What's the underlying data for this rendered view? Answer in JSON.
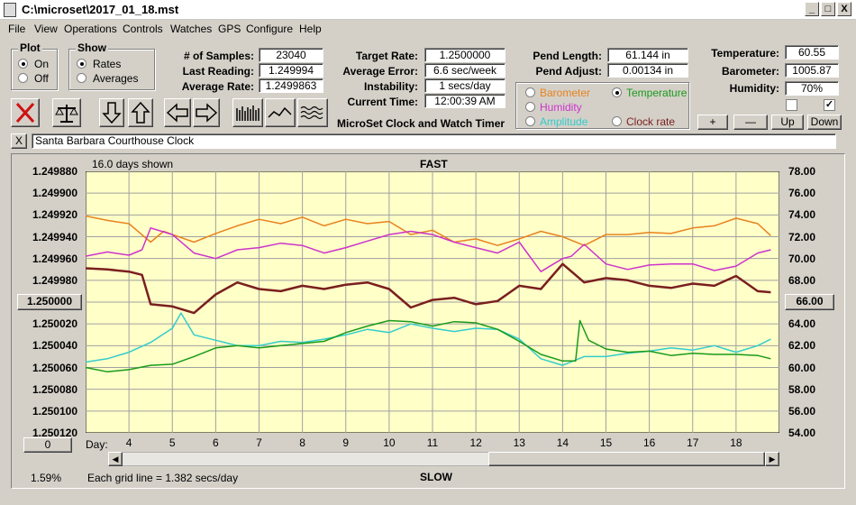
{
  "window": {
    "title": "C:\\microset\\2017_01_18.mst",
    "min": "_",
    "max": "□",
    "close": "X"
  },
  "menu": [
    "File",
    "View",
    "Operations",
    "Controls",
    "Watches",
    "GPS",
    "Configure",
    "Help"
  ],
  "plot_group": {
    "title": "Plot",
    "options": [
      "On",
      "Off"
    ],
    "selected": "On"
  },
  "show_group": {
    "title": "Show",
    "options": [
      "Rates",
      "Averages"
    ],
    "selected": "Rates"
  },
  "stats": {
    "samples_label": "# of Samples:",
    "samples": "23040",
    "last_label": "Last Reading:",
    "last": "1.249994",
    "avg_label": "Average Rate:",
    "avg": "1.2499863"
  },
  "timing": {
    "target_label": "Target Rate:",
    "target": "1.2500000",
    "error_label": "Average Error:",
    "error": "6.6 sec/week",
    "instab_label": "Instability:",
    "instab": "1 secs/day",
    "time_label": "Current Time:",
    "time": "12:00:39 AM"
  },
  "app_name": "MicroSet Clock and Watch Timer",
  "pendulum": {
    "length_label": "Pend Length:",
    "length": "61.144 in",
    "adjust_label": "Pend Adjust:",
    "adjust": "0.00134 in"
  },
  "sensor_options": [
    {
      "label": "Barometer",
      "color": "#e8821e",
      "selected": false
    },
    {
      "label": "Temperature",
      "color": "#1a9a1a",
      "selected": true
    },
    {
      "label": "Humidity",
      "color": "#cc33cc",
      "selected": false
    },
    {
      "label": "Clock rate",
      "color": "#7a1f1f",
      "selected": false
    },
    {
      "label": "Amplitude",
      "color": "#33cccc",
      "selected": false
    }
  ],
  "environment": {
    "temp_label": "Temperature:",
    "temp": "60.55",
    "baro_label": "Barometer:",
    "baro": "1005.87",
    "hum_label": "Humidity:",
    "hum": "70%"
  },
  "checkboxes": [
    false,
    true
  ],
  "adjust_buttons": [
    "+",
    "—",
    "Up",
    "Down"
  ],
  "clock_name": "Santa Barbara Courthouse Clock",
  "clear_button": "X",
  "chart": {
    "days_shown": "16.0 days shown",
    "top_label": "FAST",
    "bottom_label": "SLOW",
    "rate_button": "1.250000",
    "temp_button": "66.00",
    "zero_button": "0",
    "percent": "1.59%",
    "grid_note": "Each grid line = 1.382 secs/day",
    "day_label": "Day:",
    "scroll_left": "◀",
    "scroll_right": "▶"
  },
  "chart_data": {
    "type": "line",
    "x_label": "Day:",
    "x_ticks": [
      4,
      5,
      6,
      7,
      8,
      9,
      10,
      11,
      12,
      13,
      14,
      15,
      16,
      17,
      18
    ],
    "xlim": [
      3,
      19
    ],
    "y_left_ticks": [
      "1.249880",
      "1.249900",
      "1.249920",
      "1.249940",
      "1.249960",
      "1.249980",
      "1.250000",
      "1.250020",
      "1.250040",
      "1.250060",
      "1.250080",
      "1.250100",
      "1.250120"
    ],
    "y_left_range": [
      1.24988,
      1.25012
    ],
    "y_left_inverted": true,
    "y_right_ticks": [
      "78.00",
      "76.00",
      "74.00",
      "72.00",
      "70.00",
      "68.00",
      "66.00",
      "64.00",
      "62.00",
      "60.00",
      "58.00",
      "56.00",
      "54.00"
    ],
    "y_right_range": [
      54,
      78
    ],
    "grid": true,
    "background": "#ffffc8",
    "series": [
      {
        "name": "Barometer",
        "axis": "right",
        "color": "#e8821e",
        "x": [
          3,
          3.5,
          4,
          4.5,
          4.8,
          5,
          5.5,
          6,
          6.5,
          7,
          7.5,
          8,
          8.5,
          9,
          9.5,
          10,
          10.5,
          11,
          11.5,
          12,
          12.5,
          13,
          13.5,
          14,
          14.5,
          15,
          15.5,
          16,
          16.5,
          17,
          17.5,
          18,
          18.5,
          18.8
        ],
        "y": [
          73.9,
          73.5,
          73.2,
          71.5,
          72.5,
          72.2,
          71.5,
          72.3,
          73,
          73.6,
          73.2,
          73.8,
          73,
          73.6,
          73.2,
          73.4,
          72.2,
          72.6,
          71.5,
          71.8,
          71.2,
          71.8,
          72.5,
          72,
          71.2,
          72.2,
          72.2,
          72.4,
          72.3,
          72.8,
          73,
          73.7,
          73.2,
          72.1
        ]
      },
      {
        "name": "Humidity",
        "axis": "right",
        "color": "#cc33cc",
        "x": [
          3,
          3.5,
          4,
          4.3,
          4.5,
          5,
          5.5,
          6,
          6.5,
          7,
          7.5,
          8,
          8.5,
          9,
          9.5,
          10,
          10.5,
          11,
          11.5,
          12,
          12.5,
          13,
          13.5,
          14,
          14.2,
          14.5,
          15,
          15.5,
          16,
          16.5,
          17,
          17.5,
          18,
          18.5,
          18.8
        ],
        "y": [
          70.2,
          70.6,
          70.3,
          70.8,
          72.8,
          72.2,
          70.5,
          70,
          70.8,
          71,
          71.4,
          71.2,
          70.5,
          71,
          71.6,
          72.2,
          72.5,
          72.2,
          71.5,
          71,
          70.5,
          71.5,
          68.8,
          70,
          70.2,
          71.3,
          69.5,
          69,
          69.4,
          69.5,
          69.5,
          68.9,
          69.3,
          70.5,
          70.8
        ]
      },
      {
        "name": "Clock rate",
        "axis": "left",
        "color": "#7a1f1f",
        "x": [
          3,
          3.5,
          4,
          4.3,
          4.5,
          5,
          5.5,
          6,
          6.5,
          7,
          7.5,
          8,
          8.5,
          9,
          9.5,
          10,
          10.5,
          11,
          11.5,
          12,
          12.5,
          13,
          13.5,
          14,
          14.5,
          15,
          15.5,
          16,
          16.5,
          17,
          17.5,
          18,
          18.5,
          18.8
        ],
        "y": [
          1.249969,
          1.24997,
          1.249972,
          1.249975,
          1.250002,
          1.250004,
          1.25001,
          1.249993,
          1.249982,
          1.249988,
          1.24999,
          1.249985,
          1.249988,
          1.249984,
          1.249982,
          1.249988,
          1.250005,
          1.249998,
          1.249996,
          1.250002,
          1.249999,
          1.249985,
          1.249988,
          1.249965,
          1.249982,
          1.249978,
          1.24998,
          1.249985,
          1.249987,
          1.249983,
          1.249985,
          1.249976,
          1.24999,
          1.249991
        ]
      },
      {
        "name": "Amplitude",
        "axis": "right",
        "color": "#33cccc",
        "x": [
          3,
          3.5,
          4,
          4.5,
          5,
          5.2,
          5.5,
          6,
          6.5,
          7,
          7.5,
          8,
          8.5,
          9,
          9.5,
          10,
          10.5,
          11,
          11.5,
          12,
          12.5,
          13,
          13.5,
          14,
          14.5,
          15,
          15.5,
          16,
          16.5,
          17,
          17.5,
          18,
          18.5,
          18.8
        ],
        "y": [
          60.5,
          60.8,
          61.4,
          62.3,
          63.6,
          65,
          63,
          62.5,
          62,
          62,
          62.4,
          62.3,
          62.6,
          63,
          63.5,
          63.2,
          64,
          63.6,
          63.3,
          63.6,
          63.5,
          62.6,
          60.8,
          60.2,
          61,
          61,
          61.3,
          61.5,
          61.8,
          61.6,
          62,
          61.4,
          62,
          62.6
        ]
      },
      {
        "name": "Temperature",
        "axis": "right",
        "color": "#1a9a1a",
        "x": [
          3,
          3.5,
          4,
          4.5,
          5,
          5.5,
          6,
          6.5,
          7,
          7.5,
          8,
          8.5,
          9,
          9.5,
          10,
          10.5,
          11,
          11.5,
          12,
          12.5,
          13,
          13.5,
          14,
          14.3,
          14.4,
          14.6,
          15,
          15.5,
          16,
          16.5,
          17,
          17.5,
          18,
          18.5,
          18.8
        ],
        "y": [
          60,
          59.6,
          59.8,
          60.2,
          60.3,
          61,
          61.8,
          62,
          61.8,
          62,
          62.2,
          62.4,
          63.2,
          63.8,
          64.3,
          64.2,
          63.8,
          64.2,
          64.1,
          63.5,
          62.4,
          61.2,
          60.6,
          60.6,
          64.3,
          62.5,
          61.7,
          61.4,
          61.5,
          61.1,
          61.3,
          61.2,
          61.2,
          61.1,
          60.8
        ]
      }
    ]
  }
}
